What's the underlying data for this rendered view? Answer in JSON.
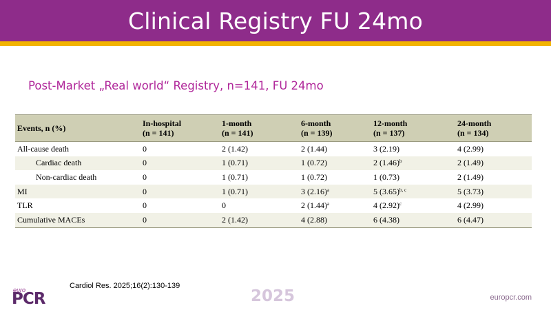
{
  "header": {
    "title": "Clinical Registry FU 24mo"
  },
  "subtitle": "Post-Market „Real world“ Registry, n=141, FU 24mo",
  "table": {
    "columns": [
      {
        "line1": "Events, n (%)",
        "line2": ""
      },
      {
        "line1": "In-hospital",
        "line2": "(n = 141)"
      },
      {
        "line1": "1-month",
        "line2": "(n = 141)"
      },
      {
        "line1": "6-month",
        "line2": "(n = 139)"
      },
      {
        "line1": "12-month",
        "line2": "(n = 137)"
      },
      {
        "line1": "24-month",
        "line2": "(n = 134)"
      }
    ],
    "rows": [
      {
        "label": "All-cause death",
        "c1": "0",
        "c2": "2 (1.42)",
        "c3": "2 (1.44)",
        "c3sup": "",
        "c4": "3 (2.19)",
        "c4sup": "",
        "c5": "4 (2.99)"
      },
      {
        "label": "Cardiac death",
        "c1": "0",
        "c2": "1 (0.71)",
        "c3": "1 (0.72)",
        "c3sup": "",
        "c4": "2 (1.46)",
        "c4sup": "b",
        "c5": "2 (1.49)"
      },
      {
        "label": "Non-cardiac death",
        "c1": "0",
        "c2": "1 (0.71)",
        "c3": "1 (0.72)",
        "c3sup": "",
        "c4": "1 (0.73)",
        "c4sup": "",
        "c5": "2 (1.49)"
      },
      {
        "label": "MI",
        "c1": "0",
        "c2": "1 (0.71)",
        "c3": "3 (2.16)",
        "c3sup": "a",
        "c4": "5 (3.65)",
        "c4sup": "b, c",
        "c5": "5 (3.73)"
      },
      {
        "label": "TLR",
        "c1": "0",
        "c2": "0",
        "c3": "2 (1.44)",
        "c3sup": "a",
        "c4": "4 (2.92)",
        "c4sup": "c",
        "c5": "4 (2.99)"
      },
      {
        "label": "Cumulative MACEs",
        "c1": "0",
        "c2": "2 (1.42)",
        "c3": "4 (2.88)",
        "c3sup": "",
        "c4": "6 (4.38)",
        "c4sup": "",
        "c5": "6 (4.47)"
      }
    ]
  },
  "footer": {
    "citation": "Cardiol Res. 2025;16(2):130-139",
    "logo_small": "euro",
    "logo_main": "PCR",
    "year": "2025",
    "website": "europcr.com"
  },
  "colors": {
    "header": "#8e2c8a",
    "gold_bar": "#f2b400",
    "subtitle": "#b0279a",
    "table_header": "#cfcfb4",
    "row_shade": "#f1f1e6"
  }
}
